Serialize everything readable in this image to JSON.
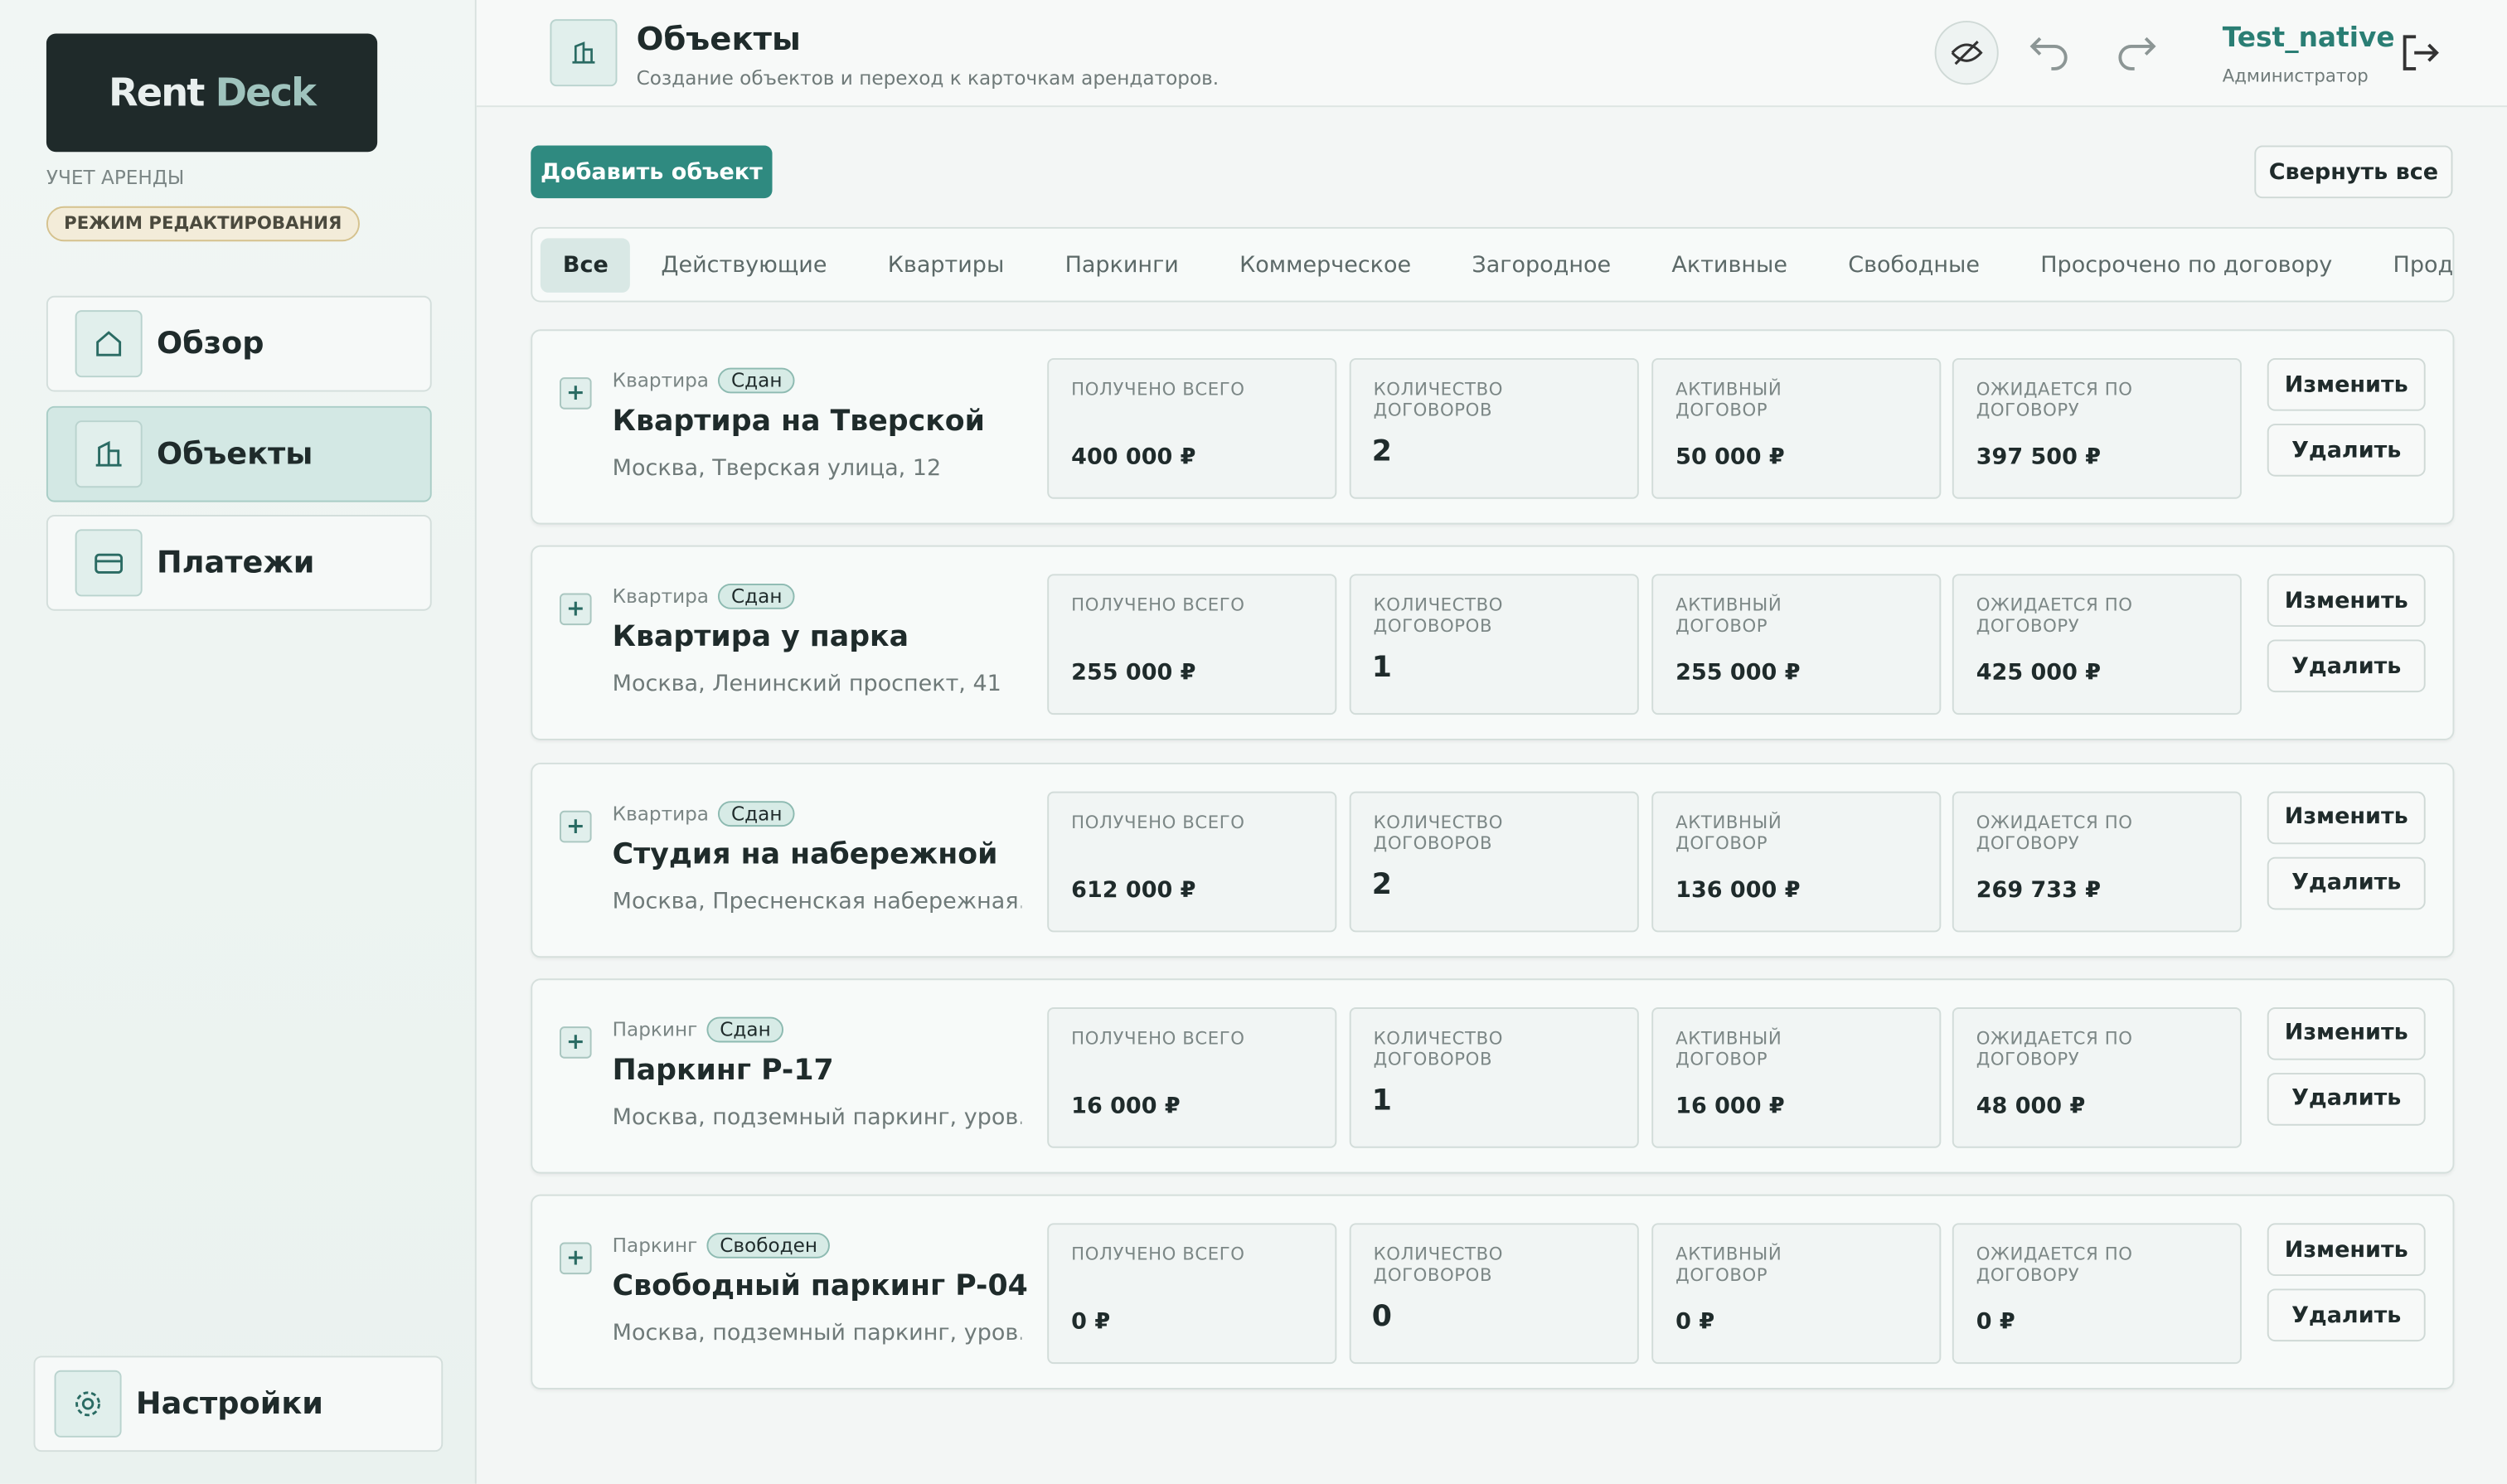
{
  "sidebar": {
    "logo": {
      "word1": "Rent",
      "word2": "Deck"
    },
    "caption": "УЧЕТ АРЕНДЫ",
    "mode_badge": "РЕЖИМ РЕДАКТИРОВАНИЯ",
    "nav": [
      {
        "label": "Обзор",
        "active": false
      },
      {
        "label": "Объекты",
        "active": true
      },
      {
        "label": "Платежи",
        "active": false
      }
    ],
    "settings": "Настройки"
  },
  "header": {
    "title": "Объекты",
    "subtitle": "Создание объектов и переход к карточкам арендаторов.",
    "user": "Test_native",
    "role": "Администратор"
  },
  "toolbar": {
    "add": "Добавить объект",
    "collapse": "Свернуть все"
  },
  "tabs": [
    {
      "label": "Все",
      "active": true
    },
    {
      "label": "Действующие",
      "active": false
    },
    {
      "label": "Квартиры",
      "active": false
    },
    {
      "label": "Паркинги",
      "active": false
    },
    {
      "label": "Коммерческое",
      "active": false
    },
    {
      "label": "Загородное",
      "active": false
    },
    {
      "label": "Активные",
      "active": false
    },
    {
      "label": "Свободные",
      "active": false
    },
    {
      "label": "Просрочено по договору",
      "active": false
    },
    {
      "label": "Прод",
      "active": false
    }
  ],
  "stat_labels": [
    "ПОЛУЧЕНО ВСЕГО",
    "КОЛИЧЕСТВО ДОГОВОРОВ",
    "АКТИВНЫЙ ДОГОВОР",
    "ОЖИДАЕТСЯ ПО ДОГОВОРУ"
  ],
  "buttons": {
    "edit": "Изменить",
    "delete": "Удалить"
  },
  "cards": [
    {
      "type": "Квартира",
      "status": "Сдан",
      "name": "Квартира на Тверской",
      "address": "Москва, Тверская улица, 12",
      "stats": [
        "400 000 ₽",
        "2",
        "50 000 ₽",
        "397 500 ₽"
      ]
    },
    {
      "type": "Квартира",
      "status": "Сдан",
      "name": "Квартира у парка",
      "address": "Москва, Ленинский проспект, 41",
      "stats": [
        "255 000 ₽",
        "1",
        "255 000 ₽",
        "425 000 ₽"
      ]
    },
    {
      "type": "Квартира",
      "status": "Сдан",
      "name": "Студия на набережной",
      "address": "Москва, Пресненская набережная...",
      "stats": [
        "612 000 ₽",
        "2",
        "136 000 ₽",
        "269 733 ₽"
      ]
    },
    {
      "type": "Паркинг",
      "status": "Сдан",
      "name": "Паркинг P-17",
      "address": "Москва, подземный паркинг, уров...",
      "stats": [
        "16 000 ₽",
        "1",
        "16 000 ₽",
        "48 000 ₽"
      ]
    },
    {
      "type": "Паркинг",
      "status": "Свободен",
      "name": "Свободный паркинг P-04",
      "address": "Москва, подземный паркинг, уров...",
      "stats": [
        "0 ₽",
        "0",
        "0 ₽",
        "0 ₽"
      ]
    }
  ]
}
